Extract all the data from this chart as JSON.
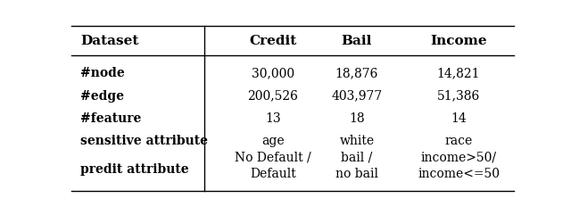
{
  "col_headers": [
    "Dataset",
    "Credit",
    "Bail",
    "Income"
  ],
  "rows": [
    [
      "#node",
      "30,000",
      "18,876",
      "14,821"
    ],
    [
      "#edge",
      "200,526",
      "403,977",
      "51,386"
    ],
    [
      "#feature",
      "13",
      "18",
      "14"
    ],
    [
      "sensitive attribute",
      "age",
      "white",
      "race"
    ],
    [
      "predit attribute",
      "No Default /\nDefault",
      "bail /\nno bail",
      "income>50/\nincome<=50"
    ]
  ],
  "bg_color": "#ffffff",
  "text_color": "#000000",
  "figsize": [
    6.4,
    2.41
  ],
  "dpi": 100
}
